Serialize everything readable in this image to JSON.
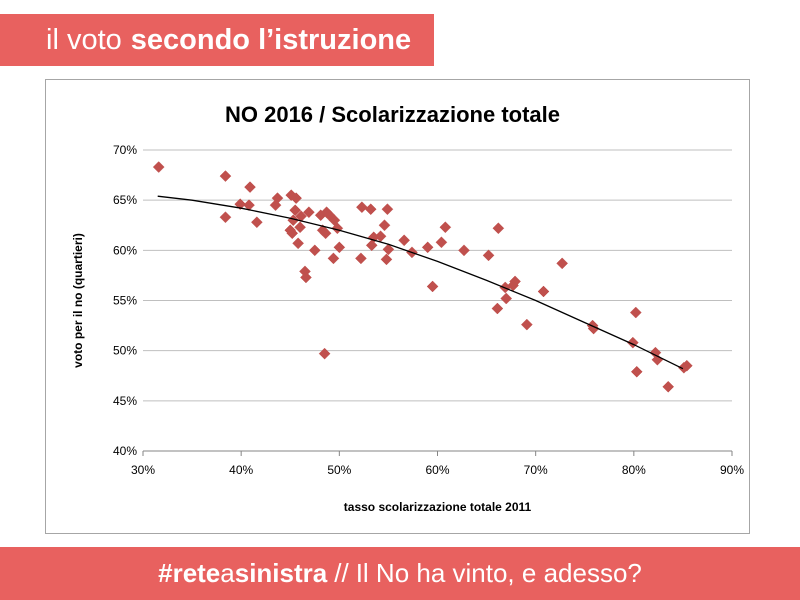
{
  "header": {
    "title_light": "il voto",
    "title_bold": "secondo l’istruzione"
  },
  "footer": {
    "hashtag_part1": "#rete",
    "hashtag_part2": "a",
    "hashtag_part3": "sinistra",
    "slashes": "//",
    "subtitle": "Il No ha vinto, e adesso?"
  },
  "colors": {
    "banner": "#e8615f",
    "marker": "#c0504d",
    "trendline": "#000000",
    "gridline": "#bfbfbf"
  },
  "chart_data": {
    "type": "scatter",
    "title": "NO 2016 / Scolarizzazione totale",
    "xlabel": "tasso scolarizzazione totale 2011",
    "ylabel": "voto per il no (quartieri)",
    "xlim": [
      30,
      90
    ],
    "ylim": [
      40,
      70
    ],
    "xticks": [
      30,
      40,
      50,
      60,
      70,
      80,
      90
    ],
    "yticks": [
      40,
      45,
      50,
      55,
      60,
      65,
      70
    ],
    "xtick_labels": [
      "30%",
      "40%",
      "50%",
      "60%",
      "70%",
      "80%",
      "90%"
    ],
    "ytick_labels": [
      "40%",
      "45%",
      "50%",
      "55%",
      "60%",
      "65%",
      "70%"
    ],
    "grid": "horizontal",
    "legend": "none",
    "marker": "diamond",
    "trendline": {
      "type": "polynomial",
      "x": [
        31.5,
        35,
        40,
        45,
        50,
        55,
        60,
        65,
        70,
        75,
        80,
        85
      ],
      "y": [
        65.4,
        65.0,
        64.2,
        63.2,
        62.0,
        60.6,
        58.9,
        57.0,
        55.0,
        52.8,
        50.6,
        48.2
      ]
    },
    "points": {
      "x": [
        31.6,
        38.4,
        38.4,
        39.9,
        40.8,
        40.9,
        41.6,
        43.5,
        43.7,
        45.0,
        45.1,
        45.2,
        45.3,
        45.5,
        45.6,
        45.8,
        46.0,
        46.1,
        46.5,
        46.6,
        46.9,
        47.5,
        48.1,
        48.3,
        48.5,
        48.6,
        48.7,
        49.0,
        49.4,
        49.5,
        49.8,
        50.0,
        52.2,
        52.3,
        53.2,
        53.3,
        53.5,
        54.2,
        54.6,
        54.8,
        54.9,
        55.0,
        56.6,
        57.4,
        59.0,
        59.5,
        60.4,
        60.8,
        62.7,
        65.2,
        66.1,
        66.2,
        66.9,
        67.0,
        67.7,
        67.9,
        69.1,
        70.8,
        72.7,
        75.8,
        75.9,
        79.9,
        80.2,
        80.3,
        82.2,
        82.4,
        83.5,
        85.1,
        85.4
      ],
      "y": [
        68.3,
        67.4,
        63.3,
        64.6,
        64.5,
        66.3,
        62.8,
        64.5,
        65.2,
        62.0,
        65.5,
        61.7,
        63.0,
        64.0,
        65.2,
        60.7,
        62.3,
        63.4,
        57.9,
        57.3,
        63.8,
        60.0,
        63.5,
        62.0,
        49.7,
        61.7,
        63.8,
        63.5,
        59.2,
        63.0,
        62.2,
        60.3,
        59.2,
        64.3,
        64.1,
        60.5,
        61.3,
        61.4,
        62.5,
        59.1,
        64.1,
        60.1,
        61.0,
        59.8,
        60.3,
        56.4,
        60.8,
        62.3,
        60.0,
        59.5,
        54.2,
        62.2,
        56.3,
        55.2,
        56.5,
        56.9,
        52.6,
        55.9,
        58.7,
        52.5,
        52.2,
        50.8,
        53.8,
        47.9,
        49.8,
        49.1,
        46.4,
        48.3,
        48.5
      ]
    }
  }
}
